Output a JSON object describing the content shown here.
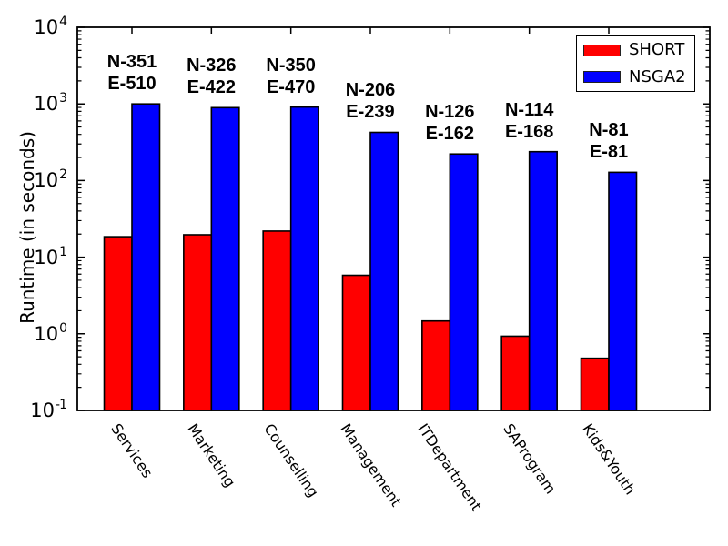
{
  "figure": {
    "background": "#ffffff",
    "axis_color": "#000000"
  },
  "legend": {
    "position": "upper right",
    "entries": [
      {
        "label": "SHORT",
        "color": "#ff0000"
      },
      {
        "label": "NSGA2",
        "color": "#0000ff"
      }
    ]
  },
  "chart_data": {
    "type": "bar",
    "title": "",
    "xlabel": "",
    "ylabel": "Runtime (in seconds)",
    "yscale": "log",
    "ylim": [
      0.1,
      10000
    ],
    "y_tick_base": "10",
    "y_tick_exponents": [
      4,
      3,
      2,
      1,
      0,
      -1
    ],
    "grid": false,
    "legend_position": "upper right",
    "categories": [
      "Services",
      "Marketing",
      "Counselling",
      "Management",
      "ITDepartment",
      "SAProgram",
      "Kids&Youth"
    ],
    "series": [
      {
        "name": "SHORT",
        "color": "#ff0000",
        "values": [
          18.5,
          19.6,
          21.9,
          5.8,
          1.47,
          0.93,
          0.48
        ]
      },
      {
        "name": "NSGA2",
        "color": "#0000ff",
        "values": [
          1000,
          894,
          910,
          425,
          222,
          238,
          128
        ]
      }
    ],
    "annotations": [
      {
        "lines": [
          "N-351",
          "E-510"
        ]
      },
      {
        "lines": [
          "N-326",
          "E-422"
        ]
      },
      {
        "lines": [
          "N-350",
          "E-470"
        ]
      },
      {
        "lines": [
          "N-206",
          "E-239"
        ]
      },
      {
        "lines": [
          "N-126",
          "E-162"
        ]
      },
      {
        "lines": [
          "N-114",
          "E-168"
        ]
      },
      {
        "lines": [
          "N-81",
          "E-81"
        ]
      }
    ]
  }
}
